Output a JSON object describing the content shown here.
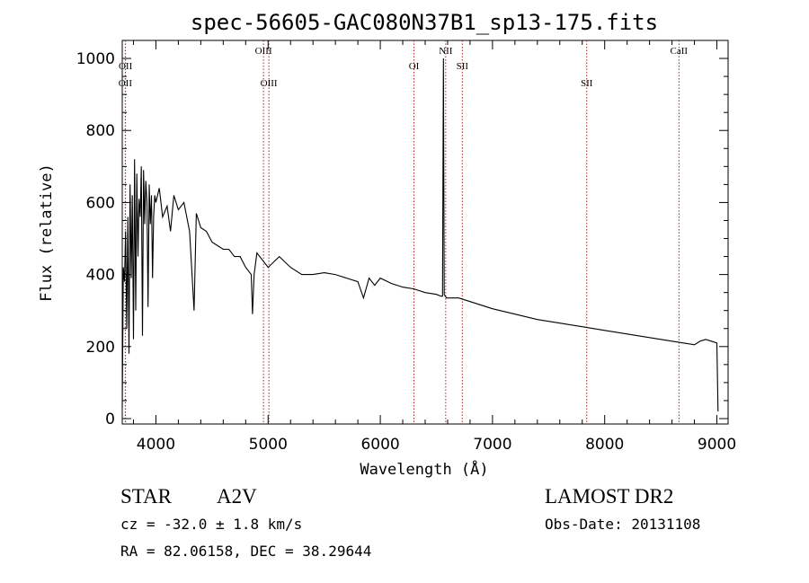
{
  "chart_data": {
    "type": "line",
    "title": "spec-56605-GAC080N37B1_sp13-175.fits",
    "xlabel": "Wavelength (Å)",
    "ylabel": "Flux (relative)",
    "xlim": [
      3700,
      9100
    ],
    "ylim": [
      -15,
      1050
    ],
    "xticks": [
      4000,
      5000,
      6000,
      7000,
      8000,
      9000
    ],
    "yticks": [
      0,
      200,
      400,
      600,
      800,
      1000
    ],
    "grid": false,
    "line_color": "#000000",
    "marker_color": "#b22222",
    "series": [
      {
        "x": [
          3700,
          3710,
          3720,
          3730,
          3740,
          3750,
          3760,
          3770,
          3780,
          3790,
          3800,
          3810,
          3820,
          3830,
          3840,
          3850,
          3860,
          3870,
          3880,
          3890,
          3900,
          3910,
          3920,
          3930,
          3940,
          3950,
          3960,
          3970,
          3980,
          3990,
          4000,
          4030,
          4060,
          4100,
          4130,
          4160,
          4200,
          4250,
          4300,
          4340,
          4360,
          4400,
          4450,
          4500,
          4550,
          4600,
          4650,
          4700,
          4750,
          4800,
          4850,
          4861,
          4875,
          4900,
          4950,
          5000,
          5100,
          5200,
          5300,
          5400,
          5500,
          5600,
          5700,
          5800,
          5850,
          5900,
          5950,
          6000,
          6100,
          6200,
          6300,
          6400,
          6500,
          6540,
          6555,
          6563,
          6570,
          6590,
          6700,
          6800,
          6900,
          7000,
          7200,
          7400,
          7600,
          7800,
          8000,
          8200,
          8400,
          8500,
          8600,
          8700,
          8800,
          8850,
          8900,
          8950,
          9000,
          9010
        ],
        "y": [
          30,
          420,
          380,
          520,
          250,
          560,
          180,
          650,
          390,
          620,
          220,
          720,
          300,
          680,
          450,
          610,
          560,
          700,
          230,
          690,
          540,
          660,
          600,
          310,
          650,
          540,
          620,
          390,
          560,
          620,
          600,
          640,
          560,
          590,
          520,
          620,
          580,
          600,
          520,
          300,
          570,
          530,
          520,
          490,
          480,
          470,
          470,
          450,
          450,
          420,
          400,
          290,
          400,
          460,
          440,
          420,
          450,
          420,
          400,
          400,
          405,
          400,
          390,
          380,
          335,
          390,
          370,
          390,
          375,
          365,
          360,
          350,
          345,
          340,
          340,
          1000,
          345,
          335,
          335,
          325,
          315,
          305,
          290,
          275,
          265,
          255,
          245,
          235,
          225,
          220,
          215,
          210,
          205,
          215,
          220,
          215,
          210,
          20
        ]
      }
    ],
    "line_markers": [
      {
        "name": "OII",
        "x": 3727,
        "row": 2
      },
      {
        "name": "OII",
        "x": 3729,
        "row": 1
      },
      {
        "name": "OIII",
        "x": 4959,
        "row": 0
      },
      {
        "name": "OIII",
        "x": 5007,
        "row": 2
      },
      {
        "name": "OI",
        "x": 6300,
        "row": 1
      },
      {
        "name": "NII",
        "x": 6583,
        "row": 0
      },
      {
        "name": "SII",
        "x": 6731,
        "row": 1
      },
      {
        "name": "SII",
        "x": 7840,
        "row": 2
      },
      {
        "name": "CaII",
        "x": 8662,
        "row": 0
      }
    ]
  },
  "info": {
    "object_type": "STAR",
    "subclass": "A2V",
    "survey": "LAMOST DR2",
    "cz": "cz = -32.0 ± 1.8 km/s",
    "obs_date": "Obs-Date: 20131108",
    "coords": "RA =  82.06158, DEC =  38.29644"
  }
}
